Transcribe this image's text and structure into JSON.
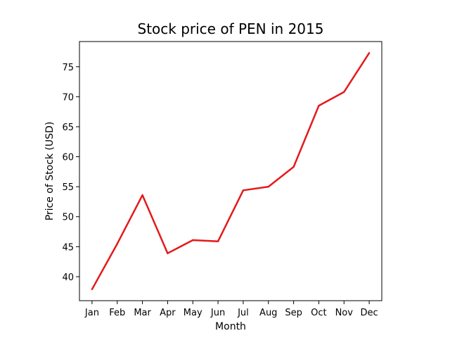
{
  "chart_data": {
    "type": "line",
    "title": "Stock price of PEN in 2015",
    "xlabel": "Month",
    "ylabel": "Price of Stock (USD)",
    "categories": [
      "Jan",
      "Feb",
      "Mar",
      "Apr",
      "May",
      "Jun",
      "Jul",
      "Aug",
      "Sep",
      "Oct",
      "Nov",
      "Dec"
    ],
    "series": [
      {
        "values": [
          37.9,
          45.5,
          53.6,
          43.9,
          46.1,
          45.9,
          54.4,
          55.0,
          58.3,
          68.5,
          70.8,
          77.3
        ],
        "color": "#e31a1c"
      }
    ],
    "yticks": [
      40,
      45,
      50,
      55,
      60,
      65,
      70,
      75
    ],
    "ylim": [
      36.0,
      79.2
    ],
    "grid": false,
    "legend": "none"
  }
}
